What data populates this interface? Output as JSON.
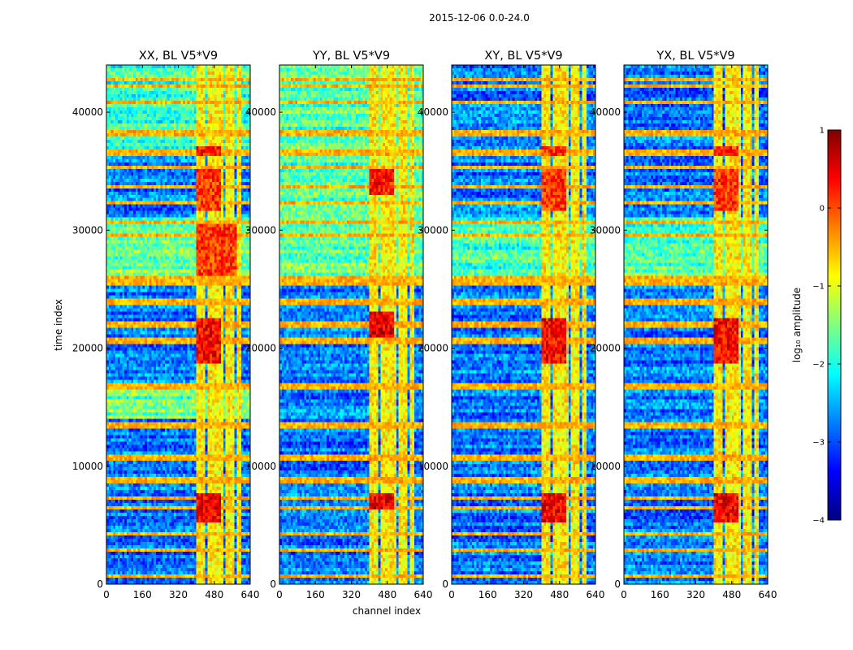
{
  "chart_data": {
    "type": "heatmap",
    "suptitle": "2015-12-06 0.0-24.0",
    "xlabel": "channel index",
    "ylabel": "time index",
    "x_range": [
      0,
      640
    ],
    "y_range": [
      0,
      44000
    ],
    "x_ticks": [
      0,
      160,
      320,
      480,
      640
    ],
    "y_ticks": [
      0,
      10000,
      20000,
      30000,
      40000
    ],
    "colormap": "jet",
    "colorbar": {
      "label": "log₁₀ amplitude",
      "range": [
        -4,
        1
      ],
      "ticks": [
        1,
        0,
        -1,
        -2,
        -3,
        -4
      ],
      "tick_labels": [
        "1",
        "0",
        "−1",
        "−2",
        "−3",
        "−4"
      ]
    },
    "rfi_channel_bands": [
      [
        400,
        440
      ],
      [
        450,
        460
      ],
      [
        465,
        500
      ],
      [
        505,
        520
      ],
      [
        530,
        545
      ],
      [
        555,
        570
      ],
      [
        585,
        600
      ]
    ],
    "rfi_time_rows": [
      600,
      2800,
      4300,
      6400,
      7300,
      8600,
      8900,
      10700,
      13500,
      16700,
      17000,
      20600,
      22000,
      23900,
      25600,
      25900,
      29500,
      30600,
      32300,
      33600,
      35300,
      36600,
      38200,
      40800,
      42300,
      42800
    ],
    "panels": [
      {
        "title": "XX, BL V5*V9",
        "bright_blocks": [
          {
            "x": [
              405,
              505
            ],
            "y": [
              5200,
              7600
            ],
            "level": 0.9
          },
          {
            "x": [
              405,
              505
            ],
            "y": [
              18600,
              22600
            ],
            "level": 0.8
          },
          {
            "x": [
              405,
              580
            ],
            "y": [
              26000,
              30500
            ],
            "level": 0.55
          },
          {
            "x": [
              405,
              505
            ],
            "y": [
              31500,
              35200
            ],
            "level": 0.55
          },
          {
            "x": [
              405,
              505
            ],
            "y": [
              36200,
              37200
            ],
            "level": 0.7
          }
        ],
        "bg_bands": [
          {
            "y": [
              14000,
              16700
            ],
            "level": -1.6
          },
          {
            "y": [
              26000,
              31000
            ],
            "level": -1.6
          },
          {
            "y": [
              36500,
              44000
            ],
            "level": -1.9
          }
        ]
      },
      {
        "title": "YY, BL V5*V9",
        "bright_blocks": [
          {
            "x": [
              405,
              505
            ],
            "y": [
              6400,
              7600
            ],
            "level": 0.95
          },
          {
            "x": [
              405,
              505
            ],
            "y": [
              21000,
              23000
            ],
            "level": 0.95
          },
          {
            "x": [
              405,
              505
            ],
            "y": [
              33000,
              35300
            ],
            "level": 0.7
          }
        ],
        "bg_bands": [
          {
            "y": [
              26000,
              31000
            ],
            "level": -1.6
          },
          {
            "y": [
              31000,
              38500
            ],
            "level": -1.8
          },
          {
            "y": [
              38500,
              44000
            ],
            "level": -1.7
          }
        ]
      },
      {
        "title": "XY, BL V5*V9",
        "bright_blocks": [
          {
            "x": [
              405,
              505
            ],
            "y": [
              5200,
              7600
            ],
            "level": 0.9
          },
          {
            "x": [
              405,
              505
            ],
            "y": [
              18600,
              22600
            ],
            "level": 0.8
          },
          {
            "x": [
              405,
              505
            ],
            "y": [
              31500,
              35200
            ],
            "level": 0.55
          },
          {
            "x": [
              405,
              505
            ],
            "y": [
              36200,
              37200
            ],
            "level": 0.6
          }
        ],
        "bg_bands": [
          {
            "y": [
              26000,
              31000
            ],
            "level": -1.8
          }
        ]
      },
      {
        "title": "YX, BL V5*V9",
        "bright_blocks": [
          {
            "x": [
              405,
              505
            ],
            "y": [
              5200,
              7600
            ],
            "level": 0.9
          },
          {
            "x": [
              405,
              505
            ],
            "y": [
              18600,
              22600
            ],
            "level": 0.8
          },
          {
            "x": [
              405,
              505
            ],
            "y": [
              31500,
              35200
            ],
            "level": 0.55
          },
          {
            "x": [
              405,
              505
            ],
            "y": [
              36200,
              37200
            ],
            "level": 0.6
          }
        ],
        "bg_bands": [
          {
            "y": [
              26000,
              31000
            ],
            "level": -1.8
          }
        ]
      }
    ]
  }
}
